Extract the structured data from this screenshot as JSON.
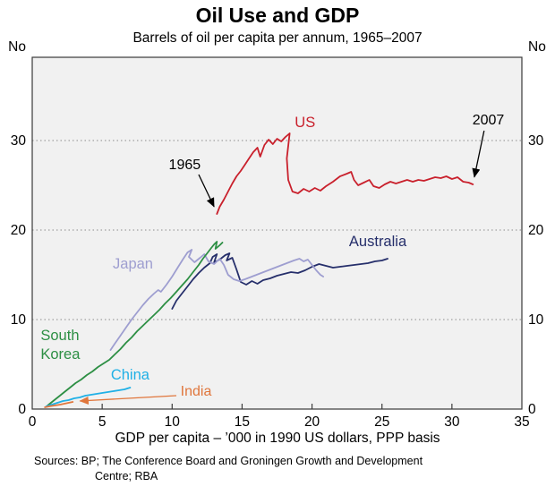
{
  "chart_data": {
    "type": "line",
    "title": "Oil Use and GDP",
    "subtitle": "Barrels of oil per capita per annum, 1965–2007",
    "xlabel": "GDP per capita – ’000 in 1990 US dollars, PPP basis",
    "y_unit_label": "No",
    "xlim": [
      0,
      35
    ],
    "ylim": [
      0,
      39.3
    ],
    "x_ticks": [
      0,
      5,
      10,
      15,
      20,
      25,
      30,
      35
    ],
    "y_ticks": [
      0,
      10,
      20,
      30
    ],
    "y_gridlines": [
      10,
      20,
      30
    ],
    "colors": {
      "plot_bg": "#f1f1f1",
      "grid": "#8c8c8c",
      "border": "#3a3a3a",
      "text": "#000000"
    },
    "series": [
      {
        "name": "US",
        "color": "#c9202c",
        "label": {
          "lines": [
            "US"
          ],
          "x": 19.5,
          "y": 32.0,
          "anchor": "middle"
        },
        "points": [
          [
            13.2,
            21.8
          ],
          [
            13.4,
            22.6
          ],
          [
            13.7,
            23.4
          ],
          [
            14.0,
            24.3
          ],
          [
            14.3,
            25.2
          ],
          [
            14.6,
            26.0
          ],
          [
            14.9,
            26.6
          ],
          [
            15.2,
            27.3
          ],
          [
            15.5,
            28.0
          ],
          [
            15.8,
            28.7
          ],
          [
            16.1,
            29.2
          ],
          [
            16.3,
            28.2
          ],
          [
            16.6,
            29.5
          ],
          [
            16.9,
            30.1
          ],
          [
            17.2,
            29.6
          ],
          [
            17.5,
            30.2
          ],
          [
            17.8,
            29.9
          ],
          [
            18.1,
            30.4
          ],
          [
            18.4,
            30.8
          ],
          [
            18.2,
            28.0
          ],
          [
            18.3,
            25.6
          ],
          [
            18.6,
            24.3
          ],
          [
            19.0,
            24.1
          ],
          [
            19.4,
            24.6
          ],
          [
            19.8,
            24.3
          ],
          [
            20.2,
            24.7
          ],
          [
            20.6,
            24.4
          ],
          [
            21.0,
            24.9
          ],
          [
            21.5,
            25.4
          ],
          [
            22.0,
            26.0
          ],
          [
            22.5,
            26.3
          ],
          [
            22.8,
            26.5
          ],
          [
            23.0,
            25.6
          ],
          [
            23.3,
            25.0
          ],
          [
            23.7,
            25.3
          ],
          [
            24.1,
            25.6
          ],
          [
            24.4,
            24.9
          ],
          [
            24.8,
            24.7
          ],
          [
            25.2,
            25.1
          ],
          [
            25.6,
            25.4
          ],
          [
            26.0,
            25.2
          ],
          [
            26.4,
            25.4
          ],
          [
            26.8,
            25.6
          ],
          [
            27.2,
            25.4
          ],
          [
            27.6,
            25.6
          ],
          [
            28.0,
            25.5
          ],
          [
            28.4,
            25.7
          ],
          [
            28.8,
            25.9
          ],
          [
            29.2,
            25.8
          ],
          [
            29.6,
            26.0
          ],
          [
            30.0,
            25.7
          ],
          [
            30.4,
            25.9
          ],
          [
            30.8,
            25.4
          ],
          [
            31.2,
            25.3
          ],
          [
            31.5,
            25.1
          ]
        ]
      },
      {
        "name": "Australia",
        "color": "#262f6b",
        "label": {
          "lines": [
            "Australia"
          ],
          "x": 24.7,
          "y": 18.7,
          "anchor": "middle"
        },
        "points": [
          [
            10.0,
            11.2
          ],
          [
            10.3,
            12.1
          ],
          [
            10.7,
            12.9
          ],
          [
            11.1,
            13.7
          ],
          [
            11.5,
            14.5
          ],
          [
            11.9,
            15.2
          ],
          [
            12.3,
            15.8
          ],
          [
            12.7,
            16.3
          ],
          [
            12.9,
            17.0
          ],
          [
            13.2,
            17.3
          ],
          [
            13.0,
            16.4
          ],
          [
            13.4,
            16.7
          ],
          [
            13.8,
            17.2
          ],
          [
            14.1,
            17.4
          ],
          [
            13.9,
            16.6
          ],
          [
            14.3,
            16.9
          ],
          [
            14.6,
            15.6
          ],
          [
            14.9,
            14.2
          ],
          [
            15.3,
            13.9
          ],
          [
            15.7,
            14.3
          ],
          [
            16.1,
            14.0
          ],
          [
            16.5,
            14.4
          ],
          [
            17.0,
            14.6
          ],
          [
            17.5,
            14.9
          ],
          [
            18.0,
            15.1
          ],
          [
            18.5,
            15.3
          ],
          [
            19.0,
            15.2
          ],
          [
            19.5,
            15.5
          ],
          [
            20.0,
            15.9
          ],
          [
            20.5,
            16.2
          ],
          [
            21.0,
            16.0
          ],
          [
            21.5,
            15.8
          ],
          [
            22.0,
            15.9
          ],
          [
            22.5,
            16.0
          ],
          [
            23.0,
            16.1
          ],
          [
            23.5,
            16.2
          ],
          [
            24.0,
            16.3
          ],
          [
            24.5,
            16.5
          ],
          [
            25.0,
            16.6
          ],
          [
            25.4,
            16.8
          ]
        ]
      },
      {
        "name": "Japan",
        "color": "#9e9ed0",
        "label": {
          "lines": [
            "Japan"
          ],
          "x": 7.2,
          "y": 16.2,
          "anchor": "middle"
        },
        "points": [
          [
            5.6,
            6.6
          ],
          [
            5.9,
            7.3
          ],
          [
            6.3,
            8.2
          ],
          [
            6.7,
            9.1
          ],
          [
            7.1,
            10.0
          ],
          [
            7.5,
            10.8
          ],
          [
            7.9,
            11.6
          ],
          [
            8.3,
            12.3
          ],
          [
            8.7,
            12.9
          ],
          [
            9.0,
            13.3
          ],
          [
            9.2,
            13.1
          ],
          [
            9.6,
            13.9
          ],
          [
            10.0,
            14.8
          ],
          [
            10.4,
            15.8
          ],
          [
            10.8,
            16.8
          ],
          [
            11.1,
            17.5
          ],
          [
            11.4,
            17.8
          ],
          [
            11.2,
            17.0
          ],
          [
            11.6,
            16.4
          ],
          [
            12.0,
            16.9
          ],
          [
            12.3,
            17.3
          ],
          [
            12.6,
            16.5
          ],
          [
            13.0,
            16.2
          ],
          [
            13.4,
            16.8
          ],
          [
            13.7,
            16.1
          ],
          [
            14.0,
            15.0
          ],
          [
            14.4,
            14.5
          ],
          [
            14.8,
            14.3
          ],
          [
            15.2,
            14.5
          ],
          [
            15.7,
            14.8
          ],
          [
            16.2,
            15.1
          ],
          [
            16.7,
            15.4
          ],
          [
            17.2,
            15.7
          ],
          [
            17.7,
            16.0
          ],
          [
            18.2,
            16.3
          ],
          [
            18.7,
            16.6
          ],
          [
            19.1,
            16.8
          ],
          [
            19.4,
            16.5
          ],
          [
            19.7,
            16.7
          ],
          [
            20.0,
            16.1
          ],
          [
            20.3,
            15.5
          ],
          [
            20.6,
            15.0
          ],
          [
            20.8,
            14.8
          ]
        ]
      },
      {
        "name": "South Korea",
        "color": "#2d8f44",
        "label": {
          "lines": [
            "South",
            "Korea"
          ],
          "x": 0.6,
          "y": 8.2,
          "anchor": "start"
        },
        "points": [
          [
            1.1,
            0.4
          ],
          [
            1.5,
            0.9
          ],
          [
            1.9,
            1.4
          ],
          [
            2.3,
            1.9
          ],
          [
            2.7,
            2.4
          ],
          [
            3.1,
            2.9
          ],
          [
            3.5,
            3.3
          ],
          [
            3.9,
            3.8
          ],
          [
            4.3,
            4.2
          ],
          [
            4.7,
            4.7
          ],
          [
            5.1,
            5.1
          ],
          [
            5.5,
            5.5
          ],
          [
            5.9,
            6.1
          ],
          [
            6.3,
            6.7
          ],
          [
            6.7,
            7.4
          ],
          [
            7.1,
            8.0
          ],
          [
            7.5,
            8.7
          ],
          [
            7.9,
            9.3
          ],
          [
            8.3,
            9.9
          ],
          [
            8.7,
            10.5
          ],
          [
            9.1,
            11.1
          ],
          [
            9.5,
            11.8
          ],
          [
            9.9,
            12.4
          ],
          [
            10.3,
            13.1
          ],
          [
            10.7,
            13.8
          ],
          [
            11.1,
            14.5
          ],
          [
            11.5,
            15.3
          ],
          [
            11.9,
            16.1
          ],
          [
            12.2,
            16.8
          ],
          [
            12.5,
            17.4
          ],
          [
            12.8,
            18.0
          ],
          [
            13.0,
            18.4
          ],
          [
            13.2,
            18.7
          ],
          [
            13.1,
            17.9
          ],
          [
            13.4,
            18.3
          ],
          [
            13.6,
            18.6
          ]
        ]
      },
      {
        "name": "China",
        "color": "#1fb0e6",
        "label": {
          "lines": [
            "China"
          ],
          "x": 7.0,
          "y": 3.8,
          "anchor": "middle"
        },
        "points": [
          [
            1.0,
            0.3
          ],
          [
            1.4,
            0.5
          ],
          [
            1.8,
            0.7
          ],
          [
            2.2,
            0.9
          ],
          [
            2.6,
            1.0
          ],
          [
            3.0,
            1.2
          ],
          [
            3.4,
            1.3
          ],
          [
            3.8,
            1.5
          ],
          [
            4.2,
            1.6
          ],
          [
            4.6,
            1.7
          ],
          [
            5.0,
            1.8
          ],
          [
            5.4,
            1.9
          ],
          [
            5.8,
            2.0
          ],
          [
            6.2,
            2.1
          ],
          [
            6.6,
            2.2
          ],
          [
            7.0,
            2.4
          ]
        ]
      },
      {
        "name": "India",
        "color": "#e0763c",
        "label": null,
        "points": [
          [
            0.9,
            0.2
          ],
          [
            1.2,
            0.3
          ],
          [
            1.6,
            0.4
          ],
          [
            2.0,
            0.5
          ],
          [
            2.3,
            0.6
          ],
          [
            2.6,
            0.7
          ],
          [
            2.9,
            0.8
          ]
        ]
      }
    ],
    "annotations": [
      {
        "text": "1965",
        "tx": 10.9,
        "ty": 27.3,
        "anchor": "middle",
        "color": "#000000",
        "arrow": {
          "x1": 11.9,
          "y1": 26.2,
          "x2": 13.0,
          "y2": 22.6
        }
      },
      {
        "text": "2007",
        "tx": 32.6,
        "ty": 32.3,
        "anchor": "middle",
        "color": "#000000",
        "arrow": {
          "x1": 32.3,
          "y1": 31.1,
          "x2": 31.6,
          "y2": 25.9
        }
      },
      {
        "text": "India",
        "tx": 10.6,
        "ty": 2.0,
        "anchor": "start",
        "color": "#e0763c",
        "arrow": {
          "x1": 10.3,
          "y1": 1.5,
          "x2": 3.4,
          "y2": 0.9
        }
      }
    ]
  },
  "footer": {
    "lines": [
      "Sources: BP; The Conference Board and Groningen Growth and Development",
      "Centre; RBA"
    ]
  }
}
